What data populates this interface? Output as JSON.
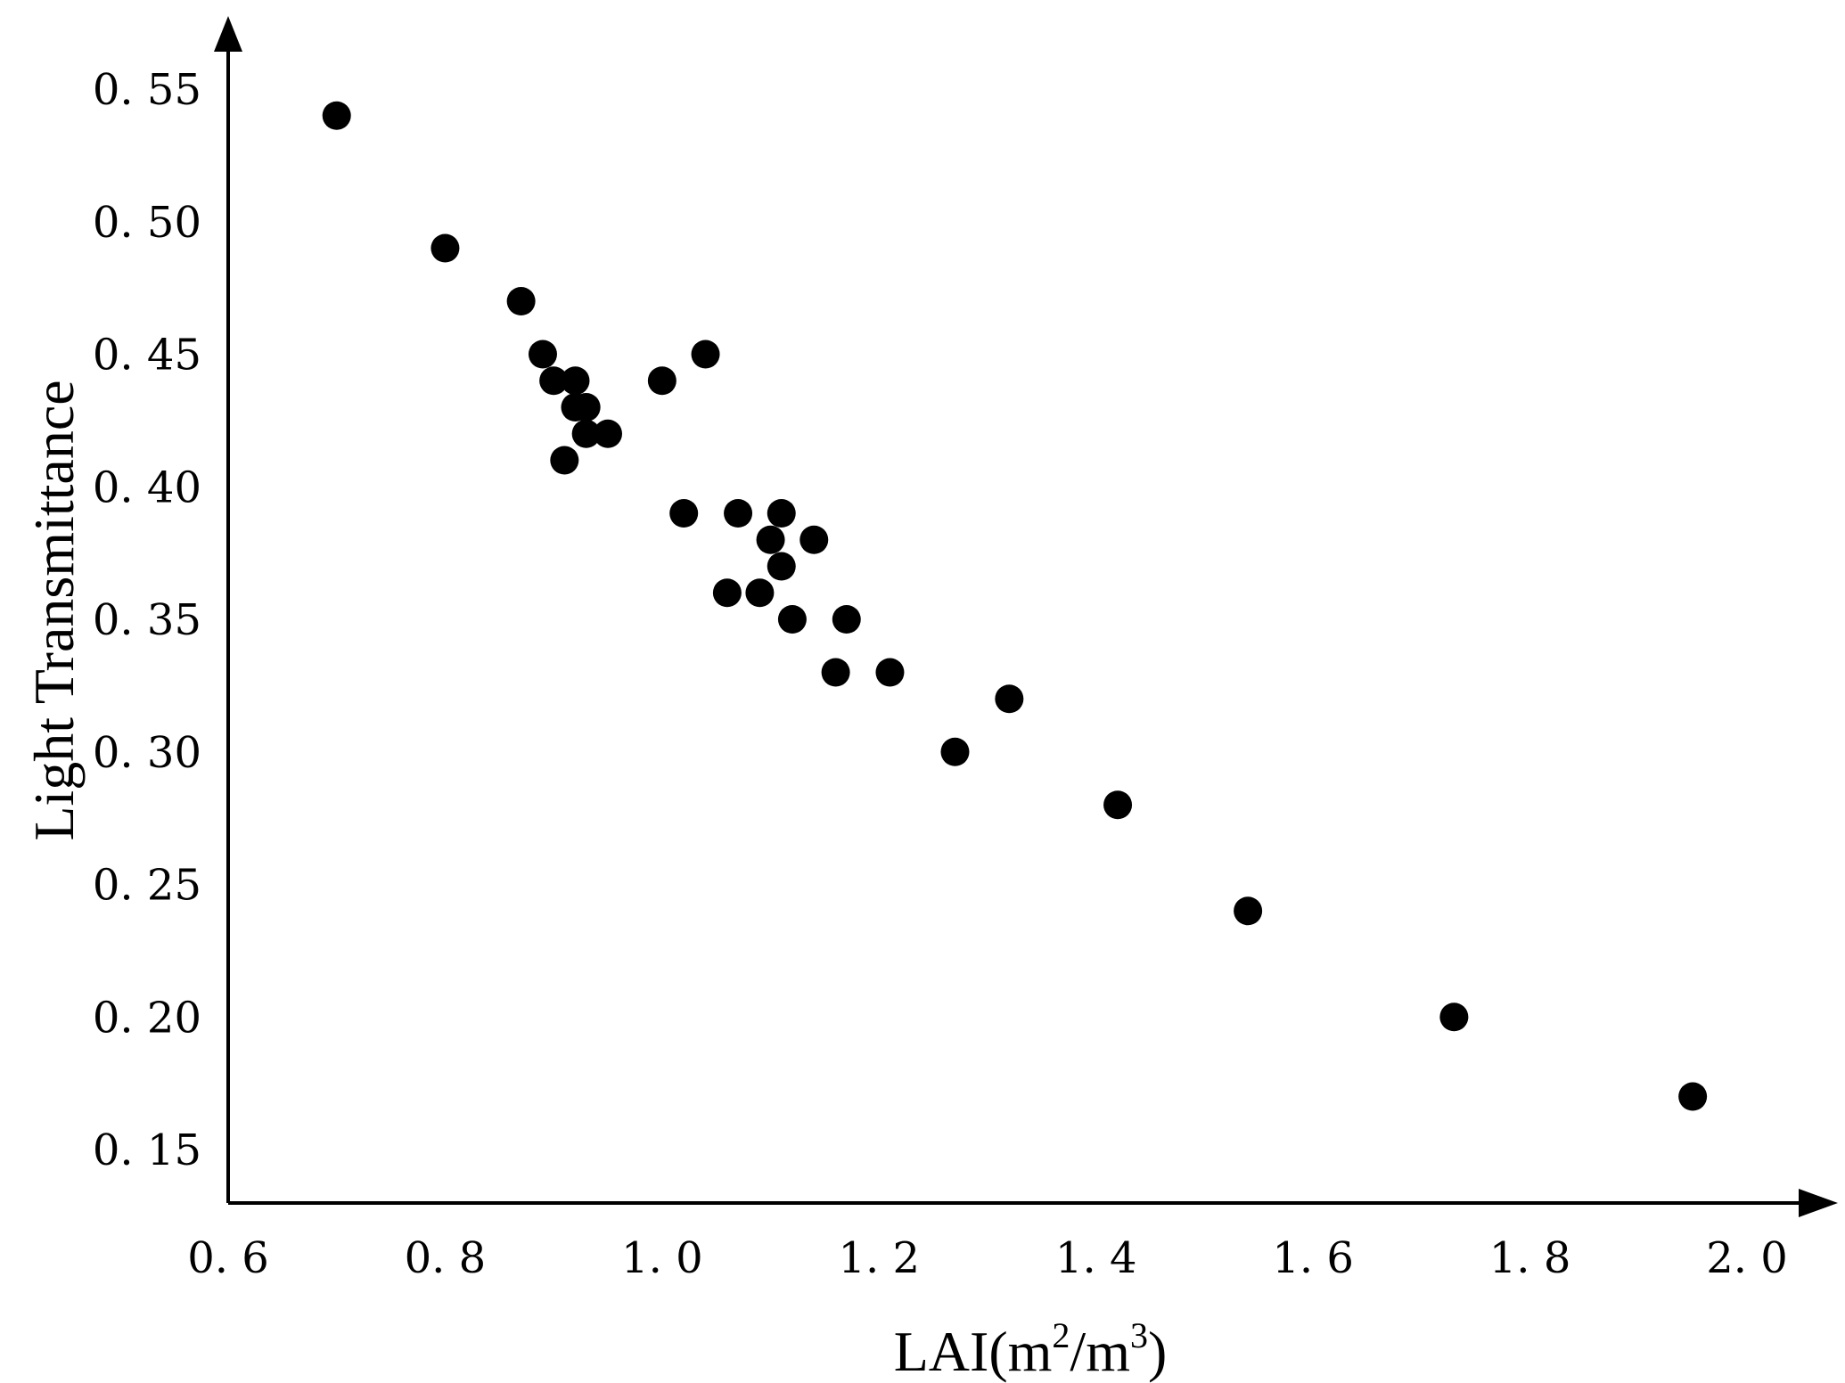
{
  "chart_data": {
    "type": "scatter",
    "xlabel_main": "LAI(m",
    "xlabel_sup1": "2",
    "xlabel_mid": "/m",
    "xlabel_sup2": "3",
    "xlabel_end": ")",
    "ylabel": "Light Transmittance",
    "xlim": [
      0.6,
      2.1
    ],
    "ylim": [
      0.125,
      0.57
    ],
    "x_ticks": [
      0.6,
      0.8,
      1.0,
      1.2,
      1.4,
      1.6,
      1.8,
      2.0
    ],
    "x_tick_labels": [
      "0. 6",
      "0. 8",
      "1. 0",
      "1. 2",
      "1. 4",
      "1. 6",
      "1. 8",
      "2. 0"
    ],
    "y_ticks": [
      0.15,
      0.2,
      0.25,
      0.3,
      0.35,
      0.4,
      0.45,
      0.5,
      0.55
    ],
    "y_tick_labels": [
      "0. 15",
      "0. 20",
      "0. 25",
      "0. 30",
      "0. 35",
      "0. 40",
      "0. 45",
      "0. 50",
      "0. 55"
    ],
    "grid": false,
    "marker_color": "#000000",
    "points": [
      {
        "x": 0.7,
        "y": 0.54
      },
      {
        "x": 0.8,
        "y": 0.49
      },
      {
        "x": 0.87,
        "y": 0.47
      },
      {
        "x": 0.89,
        "y": 0.45
      },
      {
        "x": 0.9,
        "y": 0.44
      },
      {
        "x": 0.92,
        "y": 0.44
      },
      {
        "x": 0.92,
        "y": 0.43
      },
      {
        "x": 0.93,
        "y": 0.43
      },
      {
        "x": 0.93,
        "y": 0.42
      },
      {
        "x": 0.95,
        "y": 0.42
      },
      {
        "x": 0.91,
        "y": 0.41
      },
      {
        "x": 1.0,
        "y": 0.44
      },
      {
        "x": 1.04,
        "y": 0.45
      },
      {
        "x": 1.02,
        "y": 0.39
      },
      {
        "x": 1.07,
        "y": 0.39
      },
      {
        "x": 1.11,
        "y": 0.39
      },
      {
        "x": 1.1,
        "y": 0.38
      },
      {
        "x": 1.14,
        "y": 0.38
      },
      {
        "x": 1.11,
        "y": 0.37
      },
      {
        "x": 1.06,
        "y": 0.36
      },
      {
        "x": 1.09,
        "y": 0.36
      },
      {
        "x": 1.12,
        "y": 0.35
      },
      {
        "x": 1.17,
        "y": 0.35
      },
      {
        "x": 1.16,
        "y": 0.33
      },
      {
        "x": 1.21,
        "y": 0.33
      },
      {
        "x": 1.32,
        "y": 0.32
      },
      {
        "x": 1.27,
        "y": 0.3
      },
      {
        "x": 1.42,
        "y": 0.28
      },
      {
        "x": 1.54,
        "y": 0.24
      },
      {
        "x": 1.73,
        "y": 0.2
      },
      {
        "x": 1.95,
        "y": 0.17
      }
    ]
  }
}
